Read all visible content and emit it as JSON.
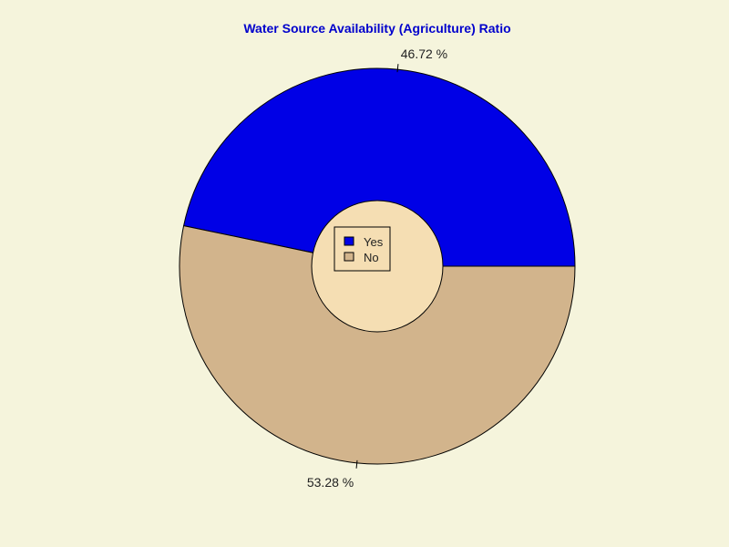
{
  "chart_data": {
    "type": "pie",
    "variant": "donut",
    "title": "Water Source Availability (Agriculture) Ratio",
    "categories": [
      "Yes",
      "No"
    ],
    "values": [
      46.72,
      53.28
    ],
    "labels": [
      "46.72 %",
      "53.28 %"
    ],
    "colors": [
      "#0000e6",
      "#d2b48c"
    ],
    "legend": {
      "placement": "center",
      "entries": [
        "Yes",
        "No"
      ]
    }
  },
  "colors": {
    "background": "#f5f4dc",
    "title": "#0000cc",
    "hole": "#f5deb3",
    "outline": "#000000"
  }
}
